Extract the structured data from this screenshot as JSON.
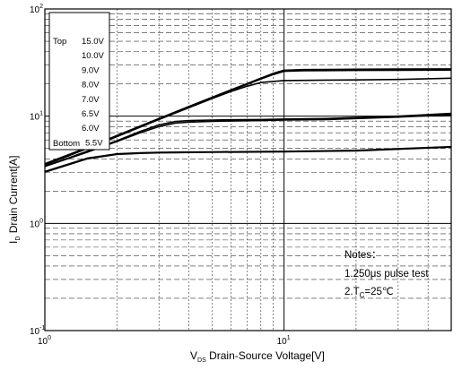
{
  "chart_data": {
    "type": "line",
    "x_scale": "log",
    "y_scale": "log",
    "xlim": [
      1,
      50
    ],
    "ylim": [
      0.1,
      100
    ],
    "x_ticks": [
      {
        "value": 1,
        "base": "10",
        "exp": "0"
      },
      {
        "value": 10,
        "base": "10",
        "exp": "1"
      }
    ],
    "y_ticks": [
      {
        "value": 0.1,
        "base": "10",
        "exp": "-1"
      },
      {
        "value": 1,
        "base": "10",
        "exp": "0"
      },
      {
        "value": 10,
        "base": "10",
        "exp": "1"
      },
      {
        "value": 100,
        "base": "10",
        "exp": "2"
      }
    ],
    "xlabel": {
      "main": "V",
      "sub": "DS",
      "rest": " Drain-Source Voltage[V]"
    },
    "ylabel": {
      "main": "I",
      "sub": "D",
      "rest": " Drain Current[A]"
    },
    "grid": true,
    "legend": {
      "position": "top-left",
      "top_label": "Top",
      "bottom_label": "Bottom",
      "entries": [
        "15.0V",
        "10.0V",
        "9.0V",
        "8.0V",
        "7.0V",
        "6.5V",
        "6.0V",
        "5.5V"
      ]
    },
    "notes": {
      "title": "Notes：",
      "line1": "1.250μs pulse test",
      "line2_prefix": "2.T",
      "line2_sub": "C",
      "line2_suffix": "=25℃"
    },
    "series": [
      {
        "x": [
          1,
          1.5,
          2,
          3,
          4,
          5,
          6,
          7,
          8,
          9,
          9.5,
          10,
          12,
          15,
          20,
          30,
          50
        ],
        "y": [
          3.6,
          5.1,
          6.6,
          9.5,
          12.3,
          15,
          17.6,
          20.1,
          22.6,
          25,
          26,
          26.8,
          27.2,
          27.3,
          27.4,
          27.5,
          27.6
        ]
      },
      {
        "x": [
          1,
          1.5,
          2,
          3,
          4,
          5,
          6,
          7,
          8,
          9,
          10,
          12,
          15,
          20,
          30,
          50
        ],
        "y": [
          3.5,
          5,
          6.5,
          9.4,
          12.2,
          14.9,
          17.5,
          20,
          22.5,
          24.8,
          26.6,
          27,
          27.1,
          27.2,
          27.2,
          27.3
        ]
      },
      {
        "x": [
          1,
          1.5,
          2,
          3,
          4,
          5,
          6,
          7,
          8,
          9,
          10,
          12,
          15,
          20,
          30,
          50
        ],
        "y": [
          3.55,
          5.05,
          6.55,
          9.45,
          12.25,
          14.9,
          17.4,
          19.8,
          22.2,
          24.4,
          26.2,
          26.5,
          26.6,
          26.7,
          26.8,
          26.9
        ]
      },
      {
        "x": [
          1,
          1.5,
          2,
          3,
          4,
          5,
          6,
          7,
          8,
          10,
          15,
          20,
          30,
          50
        ],
        "y": [
          3.5,
          5,
          6.45,
          9.3,
          12,
          14.6,
          17,
          19,
          20.6,
          21.5,
          21.7,
          21.8,
          22,
          22.6
        ]
      },
      {
        "x": [
          1,
          1.5,
          2,
          2.5,
          3,
          3.5,
          4,
          5,
          6,
          8,
          10,
          15,
          20,
          30,
          50
        ],
        "y": [
          3.4,
          4.7,
          5.9,
          7.2,
          8.3,
          8.9,
          9.1,
          9.2,
          9.25,
          9.3,
          9.4,
          9.5,
          9.7,
          10,
          10.6
        ]
      },
      {
        "x": [
          1,
          1.5,
          2,
          2.5,
          3,
          3.5,
          4,
          5,
          6,
          8,
          10,
          15,
          20,
          30,
          50
        ],
        "y": [
          3.4,
          4.6,
          5.8,
          7,
          8,
          8.6,
          8.8,
          8.95,
          9,
          9.1,
          9.2,
          9.3,
          9.5,
          9.8,
          10.3
        ]
      },
      {
        "x": [
          1,
          1.5,
          2,
          2.5,
          3,
          3.5,
          4,
          5,
          10,
          20,
          50
        ],
        "y": [
          3.05,
          4.05,
          4.45,
          4.55,
          4.6,
          4.62,
          4.63,
          4.65,
          4.7,
          4.8,
          5.2
        ]
      },
      {
        "x": [
          1,
          1.5,
          2,
          2.5,
          3,
          3.5,
          4,
          5,
          10,
          20,
          50
        ],
        "y": [
          3.0,
          4.0,
          4.4,
          4.5,
          4.55,
          4.57,
          4.58,
          4.6,
          4.65,
          4.75,
          5.15
        ]
      }
    ]
  }
}
